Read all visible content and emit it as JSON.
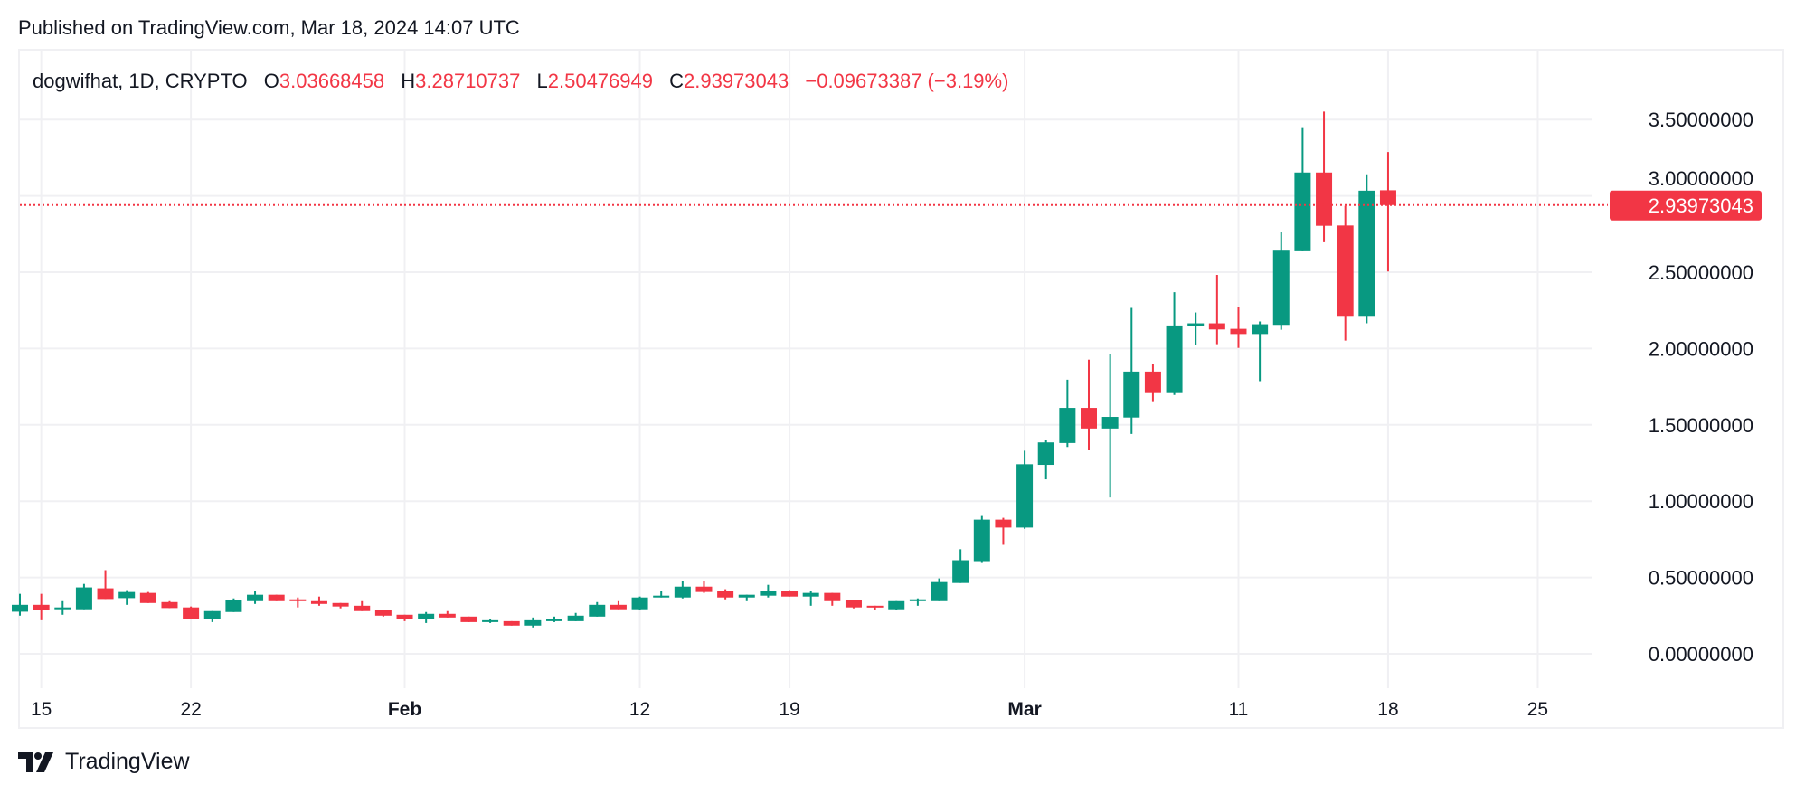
{
  "header": {
    "published": "Published on TradingView.com, Mar 18, 2024 14:07 UTC"
  },
  "legend": {
    "symbol": "dogwifhat, 1D, CRYPTO",
    "open_label": "O",
    "open": "3.03668458",
    "high_label": "H",
    "high": "3.28710737",
    "low_label": "L",
    "low": "2.50476949",
    "close_label": "C",
    "close": "2.93973043",
    "change": "−0.09673387 (−3.19%)"
  },
  "last_price": {
    "label": "2.93973043",
    "value": 2.93973043
  },
  "logo": {
    "text": "TradingView"
  },
  "colors": {
    "up": "#089981",
    "down": "#F23645",
    "grid": "#f0f0f3",
    "text": "#131722"
  },
  "chart_data": {
    "type": "candlestick",
    "title": "",
    "ylim": [
      0,
      3.5
    ],
    "grid": true,
    "y_ticks": [
      {
        "value": 0,
        "label": "0.00000000"
      },
      {
        "value": 0.5,
        "label": "0.50000000"
      },
      {
        "value": 1.0,
        "label": "1.00000000"
      },
      {
        "value": 1.5,
        "label": "1.50000000"
      },
      {
        "value": 2.0,
        "label": "2.00000000"
      },
      {
        "value": 2.5,
        "label": "2.50000000"
      },
      {
        "value": 3.0,
        "label": "3.00000000"
      },
      {
        "value": 3.5,
        "label": "3.50000000"
      }
    ],
    "x_ticks": [
      {
        "date": "2024-01-15",
        "label": "15",
        "bold": false
      },
      {
        "date": "2024-01-22",
        "label": "22",
        "bold": false
      },
      {
        "date": "2024-02-01",
        "label": "Feb",
        "bold": true
      },
      {
        "date": "2024-02-12",
        "label": "12",
        "bold": false
      },
      {
        "date": "2024-02-19",
        "label": "19",
        "bold": false
      },
      {
        "date": "2024-03-01",
        "label": "Mar",
        "bold": true
      },
      {
        "date": "2024-03-11",
        "label": "11",
        "bold": false
      },
      {
        "date": "2024-03-18",
        "label": "18",
        "bold": false
      },
      {
        "date": "2024-03-25",
        "label": "25",
        "bold": false
      }
    ],
    "start_date": "2024-01-14",
    "ohlc": [
      [
        0.276,
        0.393,
        0.25,
        0.321
      ],
      [
        0.321,
        0.393,
        0.22,
        0.288
      ],
      [
        0.296,
        0.345,
        0.256,
        0.304
      ],
      [
        0.292,
        0.458,
        0.292,
        0.435
      ],
      [
        0.429,
        0.548,
        0.359,
        0.359
      ],
      [
        0.365,
        0.417,
        0.321,
        0.405
      ],
      [
        0.399,
        0.405,
        0.333,
        0.333
      ],
      [
        0.339,
        0.345,
        0.3,
        0.3
      ],
      [
        0.304,
        0.31,
        0.226,
        0.226
      ],
      [
        0.226,
        0.28,
        0.208,
        0.28
      ],
      [
        0.274,
        0.363,
        0.274,
        0.351
      ],
      [
        0.345,
        0.411,
        0.327,
        0.387
      ],
      [
        0.387,
        0.387,
        0.345,
        0.345
      ],
      [
        0.357,
        0.369,
        0.304,
        0.345
      ],
      [
        0.345,
        0.375,
        0.315,
        0.327
      ],
      [
        0.333,
        0.333,
        0.298,
        0.31
      ],
      [
        0.315,
        0.345,
        0.28,
        0.28
      ],
      [
        0.286,
        0.286,
        0.244,
        0.25
      ],
      [
        0.256,
        0.256,
        0.214,
        0.226
      ],
      [
        0.226,
        0.274,
        0.202,
        0.262
      ],
      [
        0.262,
        0.28,
        0.238,
        0.238
      ],
      [
        0.244,
        0.244,
        0.208,
        0.208
      ],
      [
        0.208,
        0.226,
        0.202,
        0.22
      ],
      [
        0.214,
        0.214,
        0.185,
        0.185
      ],
      [
        0.185,
        0.238,
        0.173,
        0.22
      ],
      [
        0.214,
        0.244,
        0.208,
        0.226
      ],
      [
        0.214,
        0.268,
        0.214,
        0.25
      ],
      [
        0.244,
        0.339,
        0.244,
        0.321
      ],
      [
        0.321,
        0.345,
        0.292,
        0.292
      ],
      [
        0.292,
        0.375,
        0.286,
        0.369
      ],
      [
        0.369,
        0.411,
        0.369,
        0.381
      ],
      [
        0.369,
        0.476,
        0.363,
        0.44
      ],
      [
        0.44,
        0.476,
        0.399,
        0.405
      ],
      [
        0.411,
        0.423,
        0.357,
        0.369
      ],
      [
        0.369,
        0.387,
        0.345,
        0.387
      ],
      [
        0.381,
        0.452,
        0.369,
        0.411
      ],
      [
        0.411,
        0.417,
        0.375,
        0.375
      ],
      [
        0.375,
        0.411,
        0.315,
        0.399
      ],
      [
        0.399,
        0.399,
        0.315,
        0.345
      ],
      [
        0.351,
        0.351,
        0.298,
        0.304
      ],
      [
        0.315,
        0.315,
        0.286,
        0.304
      ],
      [
        0.292,
        0.345,
        0.286,
        0.345
      ],
      [
        0.345,
        0.363,
        0.315,
        0.357
      ],
      [
        0.345,
        0.494,
        0.345,
        0.47
      ],
      [
        0.464,
        0.685,
        0.464,
        0.613
      ],
      [
        0.607,
        0.903,
        0.595,
        0.879
      ],
      [
        0.879,
        0.891,
        0.714,
        0.827
      ],
      [
        0.827,
        1.331,
        0.819,
        1.242
      ],
      [
        1.238,
        1.403,
        1.143,
        1.385
      ],
      [
        1.381,
        1.796,
        1.355,
        1.611
      ],
      [
        1.611,
        1.927,
        1.333,
        1.476
      ],
      [
        1.476,
        1.962,
        1.024,
        1.552
      ],
      [
        1.548,
        2.266,
        1.44,
        1.849
      ],
      [
        1.849,
        1.897,
        1.655,
        1.708
      ],
      [
        1.708,
        2.369,
        1.696,
        2.151
      ],
      [
        2.149,
        2.236,
        2.022,
        2.165
      ],
      [
        2.165,
        2.482,
        2.028,
        2.125
      ],
      [
        2.129,
        2.272,
        2.004,
        2.095
      ],
      [
        2.095,
        2.177,
        1.786,
        2.159
      ],
      [
        2.155,
        2.766,
        2.123,
        2.641
      ],
      [
        2.637,
        3.45,
        2.637,
        3.153
      ],
      [
        3.153,
        3.552,
        2.696,
        2.804
      ],
      [
        2.806,
        2.935,
        2.052,
        2.214
      ],
      [
        2.214,
        3.141,
        2.165,
        3.034
      ],
      [
        3.03668458,
        3.28710737,
        2.50476949,
        2.93973043
      ]
    ]
  }
}
